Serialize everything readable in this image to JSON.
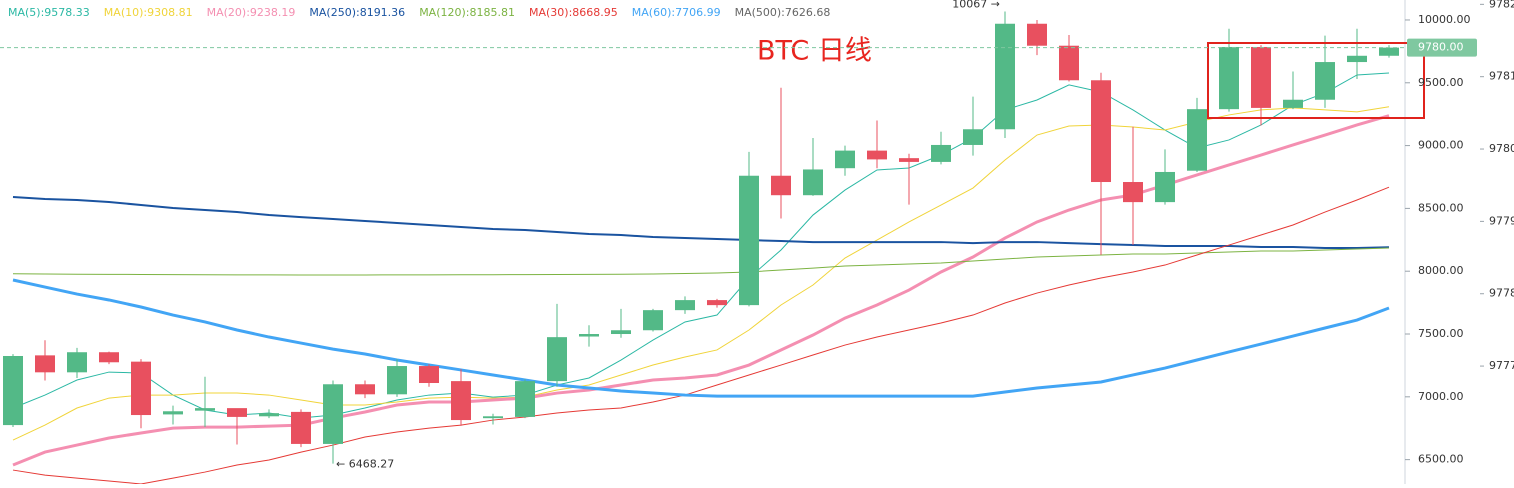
{
  "chart_data": {
    "type": "candlestick",
    "title": "BTC 日线",
    "ylim": [
      6306,
      10159
    ],
    "yticks": [
      {
        "value": 10000,
        "label": "10000.00"
      },
      {
        "value": 9500,
        "label": "9500.00"
      },
      {
        "value": 9000,
        "label": "9000.00"
      },
      {
        "value": 8500,
        "label": "8500.00"
      },
      {
        "value": 8000,
        "label": "8000.00"
      },
      {
        "value": 7500,
        "label": "7500.00"
      },
      {
        "value": 7000,
        "label": "7000.00"
      },
      {
        "value": 6500,
        "label": "6500.00"
      }
    ],
    "y2lim": [
      9775.37,
      9782.06
    ],
    "y2ticks": [
      9782,
      9781,
      9780,
      9779,
      9778,
      9777
    ],
    "last_price": {
      "value": 9780,
      "label": "9780.00",
      "color": "#7fc8a0"
    },
    "up_color": "#53b987",
    "down_color": "#e8505f",
    "open": [
      6775,
      7330,
      7195,
      7355,
      7280,
      6860,
      6890,
      6910,
      6845,
      6880,
      6625,
      7100,
      7020,
      7245,
      7125,
      6830,
      6840,
      7125,
      7480,
      7500,
      7530,
      7690,
      7770,
      7730,
      8760,
      8605,
      8820,
      8960,
      8900,
      8870,
      9005,
      9130,
      9970,
      9795,
      9520,
      8710,
      8550,
      8800,
      9290,
      9785,
      9300,
      9365,
      9665,
      9715
    ],
    "high": [
      7340,
      7450,
      7390,
      7360,
      7300,
      6930,
      7160,
      6900,
      6900,
      6900,
      7130,
      7130,
      7300,
      7260,
      7220,
      6865,
      7140,
      7740,
      7570,
      7700,
      7700,
      7800,
      7780,
      8950,
      9460,
      9060,
      9000,
      9200,
      8935,
      9110,
      9390,
      10067,
      10000,
      9880,
      9580,
      9150,
      8970,
      9380,
      9930,
      9800,
      9590,
      9875,
      9930,
      9800
    ],
    "low": [
      6760,
      7130,
      7150,
      7260,
      6750,
      6780,
      6760,
      6620,
      6830,
      6600,
      6468.27,
      6990,
      7000,
      7080,
      6770,
      6780,
      6830,
      7080,
      7400,
      7470,
      7520,
      7660,
      7710,
      7720,
      8420,
      8600,
      8760,
      8820,
      8530,
      8850,
      8920,
      9060,
      9720,
      9510,
      8130,
      8210,
      8530,
      8790,
      9270,
      9160,
      9290,
      9300,
      9530,
      9700
    ],
    "close": [
      7325,
      7195,
      7355,
      7275,
      6855,
      6885,
      6910,
      6840,
      6870,
      6625,
      7100,
      7020,
      7245,
      7110,
      6815,
      6845,
      7125,
      7475,
      7500,
      7530,
      7690,
      7770,
      7730,
      8760,
      8605,
      8810,
      8960,
      8890,
      8870,
      9005,
      9130,
      9970,
      9795,
      9520,
      8710,
      8550,
      8790,
      9290,
      9785,
      9300,
      9365,
      9665,
      9715,
      9780
    ],
    "series": [
      {
        "name": "MA(5):9578.33",
        "color": "#2bb8a4",
        "width": 1,
        "values": [
          6911,
          7014,
          7134,
          7197,
          7189,
          7014,
          6895,
          6855,
          6871,
          6831,
          6855,
          6911,
          6975,
          7014,
          7030,
          6998,
          7014,
          7094,
          7150,
          7293,
          7452,
          7596,
          7651,
          7946,
          8169,
          8447,
          8646,
          8806,
          8822,
          8925,
          9061,
          9284,
          9363,
          9483,
          9427,
          9284,
          9124,
          8981,
          9045,
          9164,
          9323,
          9419,
          9562,
          9578
        ]
      },
      {
        "name": "MA(10):9308.81",
        "color": "#f0d43a",
        "width": 1,
        "values": [
          6656,
          6775,
          6911,
          6990,
          7014,
          7014,
          7030,
          7030,
          7014,
          6975,
          6935,
          6935,
          6959,
          6990,
          6998,
          6990,
          6998,
          7054,
          7094,
          7174,
          7253,
          7317,
          7373,
          7532,
          7731,
          7890,
          8105,
          8248,
          8392,
          8527,
          8662,
          8885,
          9084,
          9156,
          9164,
          9148,
          9124,
          9188,
          9244,
          9284,
          9300,
          9284,
          9268,
          9309
        ]
      },
      {
        "name": "MA(20):9238.19",
        "color": "#f48fb1",
        "width": 3,
        "values": [
          6457,
          6560,
          6616,
          6672,
          6712,
          6751,
          6759,
          6759,
          6767,
          6775,
          6831,
          6879,
          6935,
          6959,
          6959,
          6975,
          6990,
          7030,
          7054,
          7094,
          7134,
          7150,
          7174,
          7253,
          7373,
          7492,
          7627,
          7731,
          7850,
          7994,
          8113,
          8264,
          8392,
          8487,
          8567,
          8607,
          8686,
          8766,
          8846,
          8925,
          9005,
          9084,
          9164,
          9238
        ]
      },
      {
        "name": "MA(250):8191.36",
        "color": "#1a53a0",
        "width": 2,
        "values": [
          8591,
          8575,
          8567,
          8551,
          8527,
          8503,
          8487,
          8471,
          8447,
          8431,
          8416,
          8400,
          8384,
          8368,
          8352,
          8336,
          8328,
          8312,
          8296,
          8288,
          8272,
          8264,
          8256,
          8248,
          8240,
          8232,
          8232,
          8232,
          8232,
          8232,
          8224,
          8232,
          8232,
          8224,
          8216,
          8209,
          8201,
          8201,
          8201,
          8193,
          8193,
          8185,
          8185,
          8191
        ]
      },
      {
        "name": "MA(120):8185.81",
        "color": "#7cb342",
        "width": 1,
        "values": [
          7980,
          7978,
          7976,
          7975,
          7974,
          7973,
          7972,
          7971,
          7971,
          7970,
          7970,
          7970,
          7971,
          7971,
          7972,
          7972,
          7973,
          7974,
          7975,
          7976,
          7978,
          7982,
          7986,
          7994,
          8010,
          8025,
          8041,
          8049,
          8057,
          8065,
          8081,
          8097,
          8113,
          8121,
          8129,
          8137,
          8137,
          8145,
          8153,
          8161,
          8161,
          8169,
          8177,
          8185
        ]
      },
      {
        "name": "MA(30):8668.95",
        "color": "#e53935",
        "width": 1,
        "values": [
          6417,
          6377,
          6353,
          6330,
          6306,
          6353,
          6401,
          6457,
          6497,
          6560,
          6616,
          6680,
          6720,
          6751,
          6775,
          6815,
          6839,
          6871,
          6895,
          6911,
          6959,
          7014,
          7094,
          7174,
          7253,
          7333,
          7412,
          7476,
          7532,
          7588,
          7651,
          7747,
          7826,
          7890,
          7946,
          7994,
          8049,
          8129,
          8208,
          8288,
          8368,
          8471,
          8567,
          8669
        ]
      },
      {
        "name": "MA(60):7706.99",
        "color": "#42a5f5",
        "width": 3,
        "values": [
          7930,
          7874,
          7818,
          7771,
          7715,
          7651,
          7596,
          7532,
          7476,
          7428,
          7380,
          7341,
          7293,
          7253,
          7214,
          7174,
          7134,
          7094,
          7070,
          7046,
          7030,
          7014,
          7006,
          7006,
          7006,
          7006,
          7006,
          7006,
          7006,
          7006,
          7006,
          7038,
          7070,
          7094,
          7118,
          7174,
          7229,
          7293,
          7357,
          7420,
          7484,
          7548,
          7611,
          7707
        ]
      },
      {
        "name": "MA(500):7626.68",
        "color": "#666666"
      }
    ],
    "annotations": [
      {
        "text": "10067 →",
        "index": 31,
        "value": 10067,
        "side": "left"
      },
      {
        "text": "← 6468.27",
        "index": 10,
        "value": 6468.27,
        "side": "right"
      }
    ]
  }
}
